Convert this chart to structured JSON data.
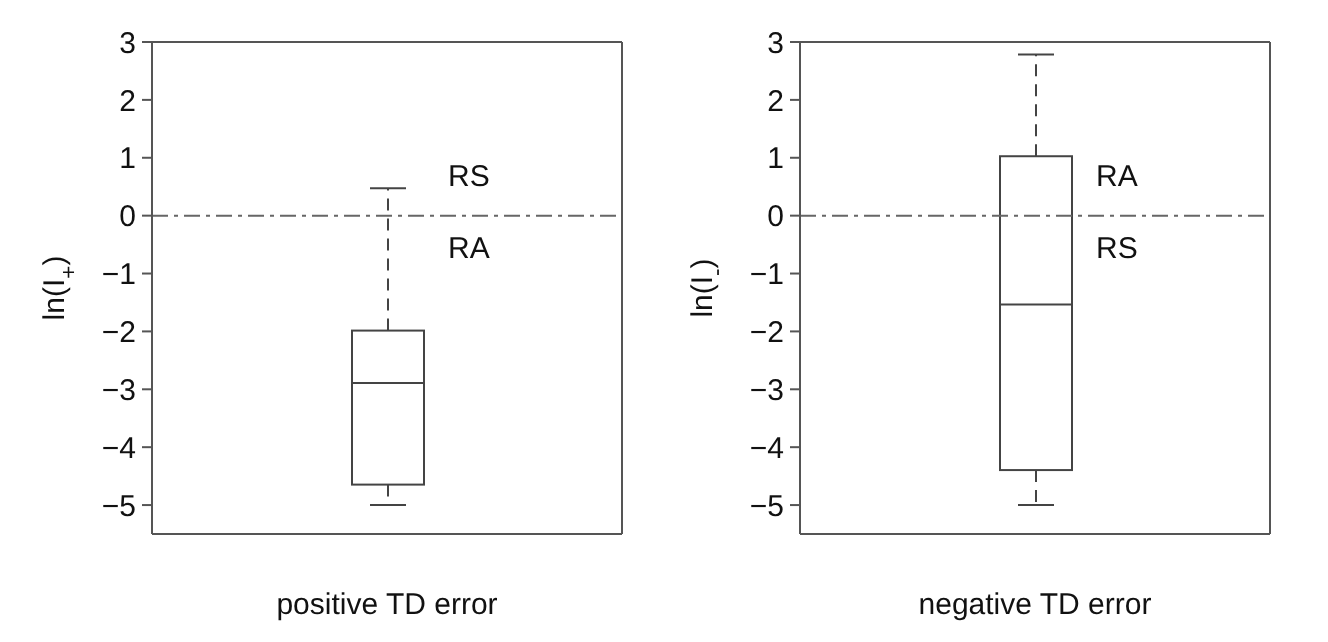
{
  "chart_data": [
    {
      "type": "box",
      "categories": [
        null
      ],
      "xlabel": "positive TD error",
      "ylabel": "ln(I$_{+}$)",
      "ylim": [
        -5.5,
        3
      ],
      "yticks": [
        -5,
        -4,
        -3,
        -2,
        -1,
        0,
        1,
        2,
        3
      ],
      "tick_labels": "y",
      "grid": false,
      "color": "#444444",
      "boxes": [
        {
          "low": -5,
          "q1": -4.65,
          "median": -2.9,
          "q3": -2,
          "high": 0.45
        }
      ],
      "ref_lines": [
        {
          "axis": "y",
          "value": 0,
          "color": "#666666",
          "line_style": "dashdot"
        }
      ],
      "annotations": [
        "RS",
        "RA"
      ]
    },
    {
      "type": "box",
      "categories": [
        null
      ],
      "xlabel": "negative TD error",
      "ylabel": "ln(I$_{-}$)",
      "ylim": [
        -5.5,
        3
      ],
      "yticks": [
        -5,
        -4,
        -3,
        -2,
        -1,
        0,
        1,
        2,
        3
      ],
      "tick_labels": "y",
      "grid": false,
      "color": "#444444",
      "boxes": [
        {
          "low": -5,
          "q1": -4.4,
          "median": -1.55,
          "q3": 1,
          "high": 2.75
        }
      ],
      "ref_lines": [
        {
          "axis": "y",
          "value": 0,
          "color": "#666666",
          "line_style": "dashdot"
        }
      ],
      "annotations": [
        "RA",
        "RS"
      ]
    }
  ]
}
